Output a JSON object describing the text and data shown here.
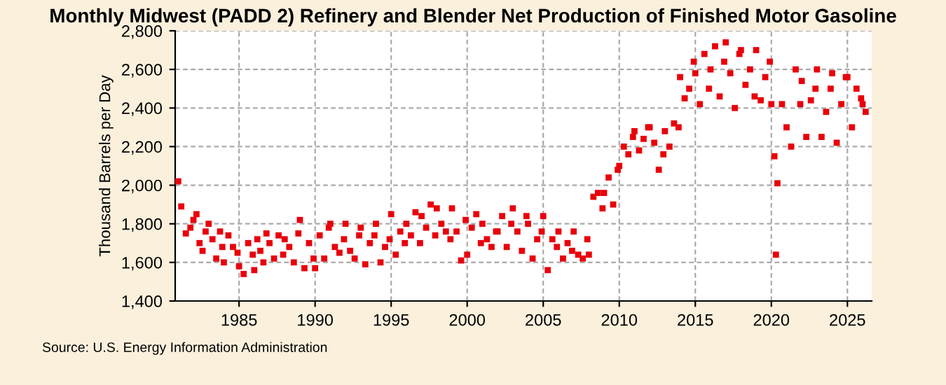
{
  "chart_data": {
    "type": "scatter",
    "title": "Monthly Midwest (PADD 2) Refinery and Blender Net Production of Finished Motor Gasoline",
    "ylabel": "Thousand Barrels per Day",
    "annotations": [
      "Source: U.S. Energy Information Administration"
    ],
    "marker": "square",
    "grid": true,
    "legend": false,
    "xlim": [
      1980.8,
      2026.6
    ],
    "xticks": [
      1985,
      1990,
      1995,
      2000,
      2005,
      2010,
      2015,
      2020,
      2025
    ],
    "ylim": [
      1400,
      2800
    ],
    "yticks": [
      {
        "value": 1400,
        "label": "1,400"
      },
      {
        "value": 1600,
        "label": "1,600"
      },
      {
        "value": 1800,
        "label": "1,800"
      },
      {
        "value": 2000,
        "label": "2,000"
      },
      {
        "value": 2200,
        "label": "2,200"
      },
      {
        "value": 2400,
        "label": "2,400"
      },
      {
        "value": 2600,
        "label": "2,600"
      },
      {
        "value": 2800,
        "label": "2,800"
      }
    ],
    "series": [
      {
        "color": "#e8000b",
        "x": [
          1981.0,
          1981.2,
          1981.5,
          1981.8,
          1982.0,
          1982.2,
          1982.4,
          1982.6,
          1982.8,
          1983.0,
          1983.25,
          1983.5,
          1983.75,
          1983.9,
          1984.0,
          1984.3,
          1984.6,
          1984.9,
          1985.0,
          1985.3,
          1985.6,
          1985.9,
          1986.0,
          1986.2,
          1986.4,
          1986.6,
          1986.8,
          1987.0,
          1987.3,
          1987.6,
          1987.9,
          1988.0,
          1988.3,
          1988.6,
          1988.9,
          1989.0,
          1989.3,
          1989.6,
          1989.9,
          1990.0,
          1990.3,
          1990.6,
          1990.9,
          1991.0,
          1991.3,
          1991.6,
          1991.9,
          1992.0,
          1992.3,
          1992.6,
          1992.9,
          1993.0,
          1993.3,
          1993.6,
          1993.9,
          1994.0,
          1994.3,
          1994.6,
          1994.9,
          1995.0,
          1995.3,
          1995.6,
          1995.9,
          1996.0,
          1996.3,
          1996.6,
          1996.9,
          1997.0,
          1997.3,
          1997.6,
          1997.9,
          1998.0,
          1998.3,
          1998.6,
          1998.9,
          1999.0,
          1999.3,
          1999.6,
          1999.9,
          2000.0,
          2000.3,
          2000.6,
          2000.9,
          2001.0,
          2001.3,
          2001.6,
          2001.9,
          2002.0,
          2002.3,
          2002.6,
          2002.9,
          2003.0,
          2003.3,
          2003.6,
          2003.9,
          2004.0,
          2004.3,
          2004.6,
          2004.9,
          2005.0,
          2005.3,
          2005.6,
          2005.9,
          2006.0,
          2006.3,
          2006.6,
          2006.9,
          2007.0,
          2007.3,
          2007.6,
          2007.9,
          2008.0,
          2008.3,
          2008.6,
          2008.9,
          2009.0,
          2009.3,
          2009.6,
          2009.9,
          2010.0,
          2010.3,
          2010.6,
          2010.9,
          2011.0,
          2011.3,
          2011.6,
          2011.9,
          2012.0,
          2012.3,
          2012.6,
          2012.9,
          2013.0,
          2013.3,
          2013.6,
          2013.9,
          2014.0,
          2014.3,
          2014.6,
          2014.9,
          2015.0,
          2015.3,
          2015.6,
          2015.9,
          2016.0,
          2016.3,
          2016.6,
          2016.9,
          2017.0,
          2017.3,
          2017.6,
          2017.9,
          2018.0,
          2018.3,
          2018.6,
          2018.9,
          2019.0,
          2019.3,
          2019.6,
          2019.9,
          2020.0,
          2020.2,
          2020.3,
          2020.4,
          2020.7,
          2021.0,
          2021.3,
          2021.6,
          2021.9,
          2022.0,
          2022.3,
          2022.6,
          2022.9,
          2023.0,
          2023.3,
          2023.6,
          2023.9,
          2024.0,
          2024.3,
          2024.6,
          2024.9,
          2025.0,
          2025.3,
          2025.6,
          2025.9,
          2026.0,
          2026.2
        ],
        "values": [
          2020,
          1890,
          1750,
          1780,
          1820,
          1850,
          1700,
          1660,
          1760,
          1800,
          1720,
          1620,
          1760,
          1680,
          1600,
          1740,
          1680,
          1650,
          1580,
          1540,
          1700,
          1640,
          1560,
          1720,
          1660,
          1600,
          1750,
          1700,
          1620,
          1740,
          1640,
          1720,
          1680,
          1600,
          1750,
          1820,
          1570,
          1700,
          1620,
          1570,
          1740,
          1620,
          1780,
          1800,
          1680,
          1650,
          1720,
          1800,
          1660,
          1620,
          1740,
          1780,
          1590,
          1700,
          1740,
          1800,
          1600,
          1680,
          1720,
          1850,
          1640,
          1760,
          1700,
          1800,
          1740,
          1860,
          1700,
          1840,
          1780,
          1900,
          1740,
          1880,
          1800,
          1760,
          1720,
          1880,
          1760,
          1610,
          1820,
          1640,
          1780,
          1850,
          1700,
          1800,
          1720,
          1680,
          1760,
          1760,
          1840,
          1680,
          1800,
          1880,
          1760,
          1660,
          1840,
          1800,
          1620,
          1720,
          1760,
          1840,
          1560,
          1720,
          1680,
          1760,
          1620,
          1700,
          1660,
          1760,
          1640,
          1620,
          1720,
          1640,
          1940,
          1960,
          1880,
          1960,
          2040,
          1900,
          2080,
          2100,
          2200,
          2160,
          2250,
          2280,
          2180,
          2240,
          2300,
          2300,
          2220,
          2080,
          2160,
          2280,
          2200,
          2320,
          2300,
          2560,
          2450,
          2500,
          2640,
          2580,
          2420,
          2680,
          2500,
          2600,
          2720,
          2460,
          2640,
          2740,
          2580,
          2400,
          2680,
          2700,
          2520,
          2600,
          2460,
          2700,
          2440,
          2560,
          2640,
          2420,
          2150,
          1640,
          2010,
          2420,
          2300,
          2200,
          2600,
          2420,
          2540,
          2250,
          2440,
          2500,
          2600,
          2250,
          2380,
          2500,
          2580,
          2220,
          2420,
          2560,
          2560,
          2300,
          2500,
          2450,
          2420,
          2380
        ]
      }
    ]
  }
}
